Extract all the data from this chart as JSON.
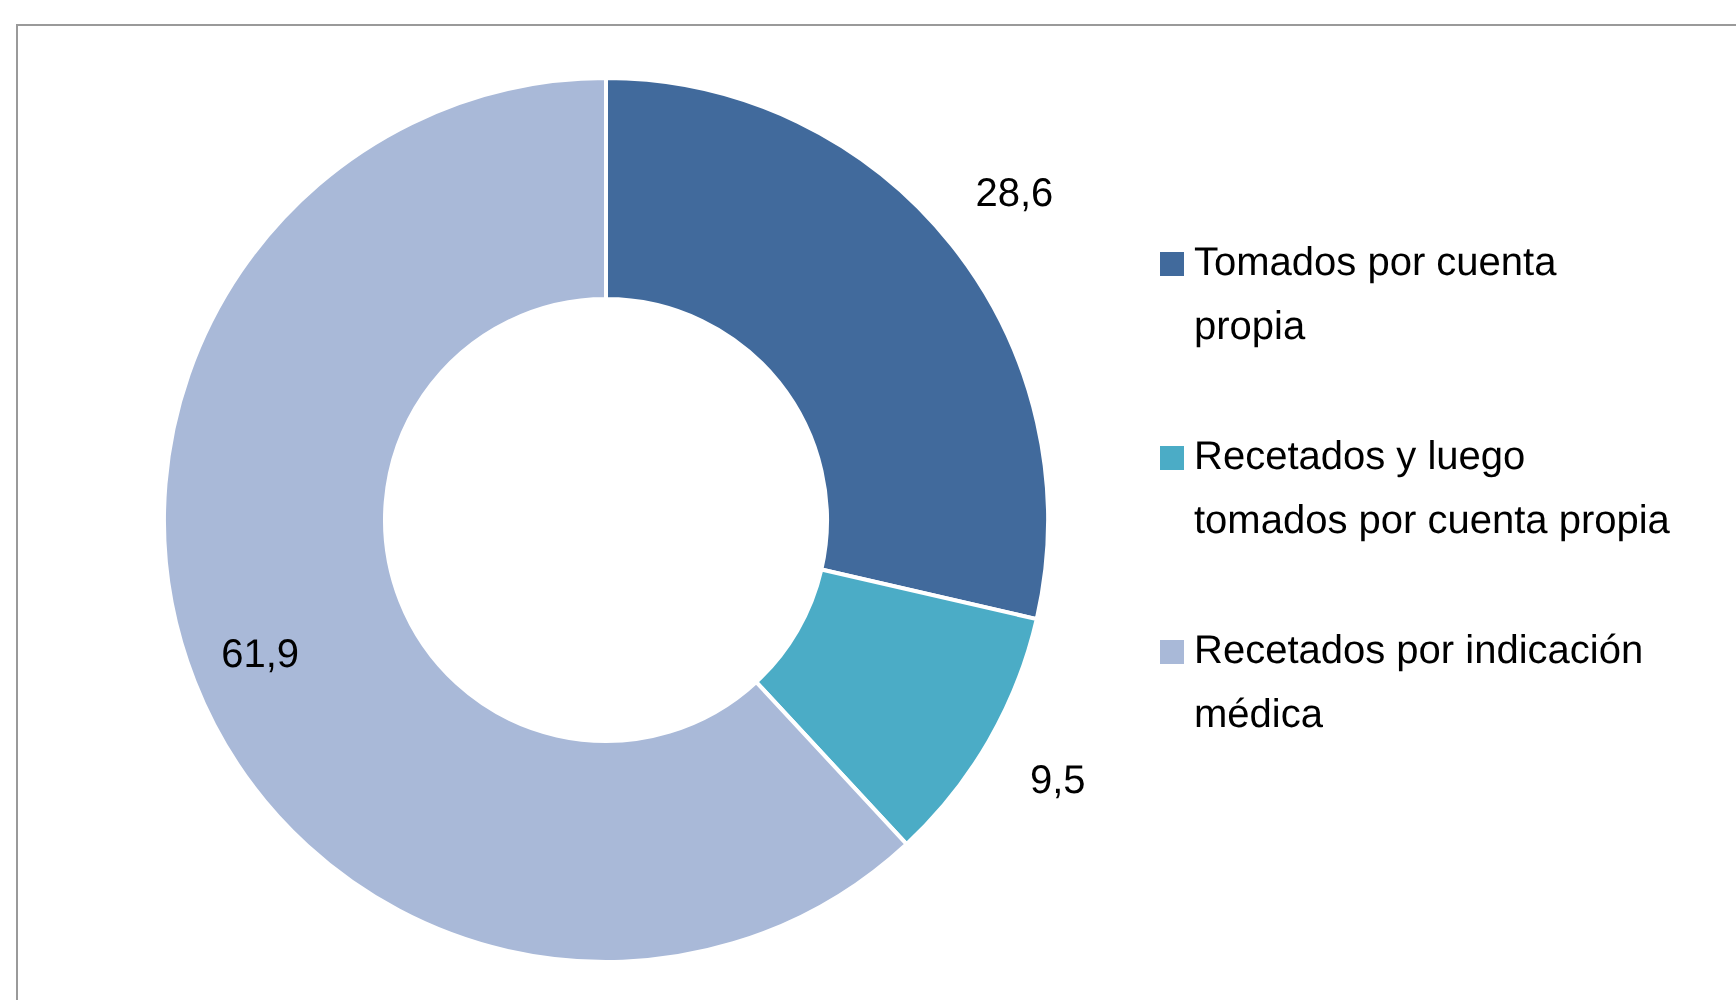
{
  "chart_data": {
    "type": "donut",
    "categories": [
      "Tomados por cuenta propia",
      "Recetados y luego tomados por cuenta propia",
      "Recetados por indicación médica"
    ],
    "values": [
      28.6,
      9.5,
      61.9
    ],
    "value_labels": [
      "28,6",
      "9,5",
      "61,9"
    ],
    "colors": [
      "#416a9c",
      "#4bacc6",
      "#a9b9d8"
    ],
    "legend": "right"
  }
}
